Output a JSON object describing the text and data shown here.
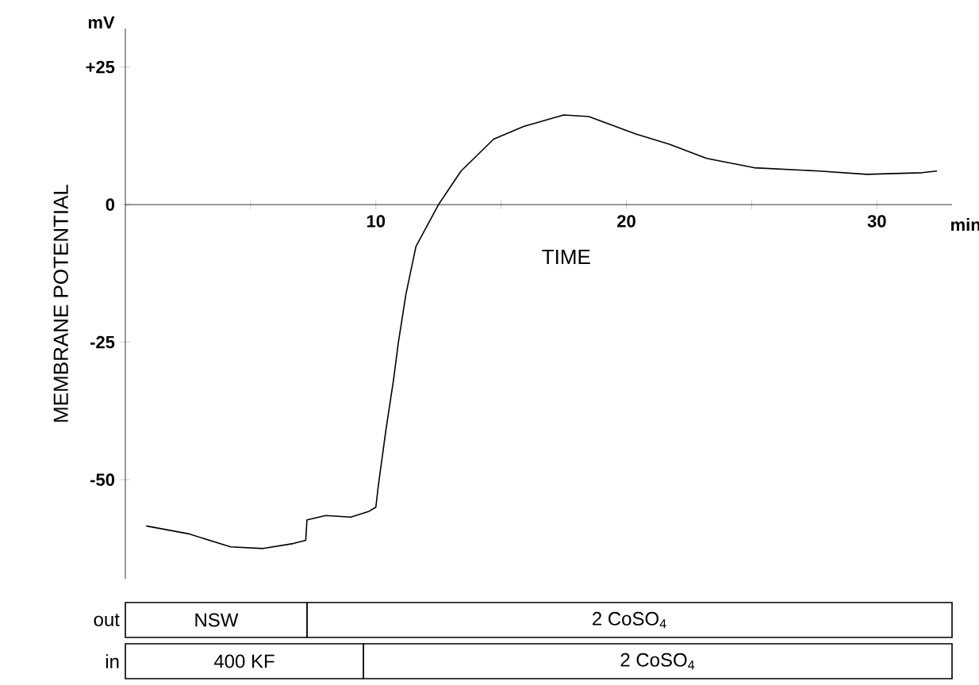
{
  "chart_data": [
    {
      "type": "line",
      "xlabel": "TIME",
      "ylabel": "MEMBRANE POTENTIAL",
      "annotations": [
        "mV",
        "min"
      ],
      "x": [
        0.83,
        2.5,
        4.2,
        5.5,
        6.7,
        7.2,
        7.25,
        8.0,
        9.0,
        9.7,
        10.0,
        10.1,
        10.4,
        10.7,
        10.9,
        11.2,
        11.6,
        12.5,
        13.4,
        14.7,
        15.9,
        17.5,
        18.5,
        20.4,
        21.7,
        23.2,
        25.1,
        27.7,
        29.6,
        31.8,
        32.4
      ],
      "values": [
        -58.4,
        -59.8,
        -62.2,
        -62.5,
        -61.6,
        -61.0,
        -57.3,
        -56.5,
        -56.8,
        -55.8,
        -55,
        -51,
        -41,
        -32,
        -25,
        -16.3,
        -7.6,
        0,
        6.1,
        11.9,
        14.2,
        16.3,
        16,
        12.8,
        11,
        8.4,
        6.7,
        6.1,
        5.5,
        5.8,
        6.1
      ],
      "color": "#000000",
      "xlim": [
        0,
        33
      ],
      "ylim": [
        -68,
        32
      ],
      "xticks": [
        {
          "value": 5,
          "label": null
        },
        10,
        {
          "value": 15,
          "label": null
        },
        20,
        {
          "value": 25,
          "label": null
        },
        30
      ],
      "yticks": [
        {
          "value": 25,
          "label": "+25"
        },
        0,
        -25,
        -50
      ]
    },
    {
      "type": "bar",
      "orientation": "horizontal",
      "stacked": true,
      "categories": [
        "out",
        "in"
      ],
      "series": [
        {
          "color": "#ffffff",
          "values": [
            7.25,
            9.5
          ]
        },
        {
          "color": "#ffffff",
          "values": [
            25.75,
            23.5
          ]
        }
      ],
      "annotations": [
        "NSW",
        "2 CoSO$_{4}$",
        "400 KF",
        "2 CoSO$_{4}$"
      ],
      "xlim": [
        0,
        33
      ],
      "tick_labels": "y"
    }
  ]
}
